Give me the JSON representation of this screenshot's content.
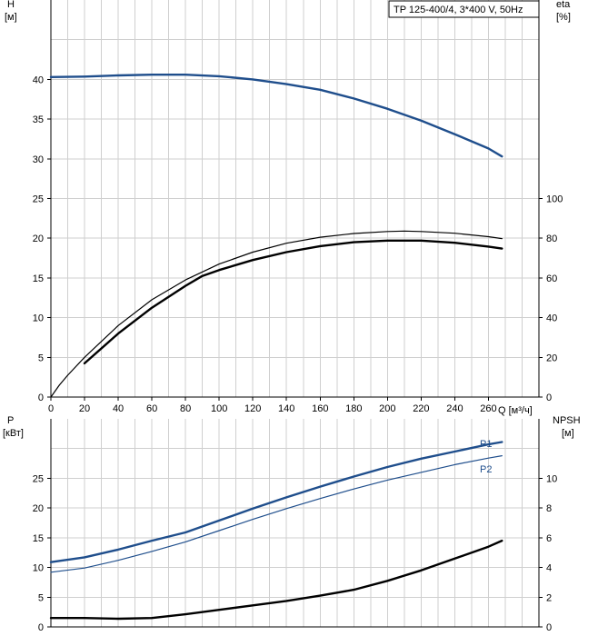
{
  "chart_data": [
    {
      "type": "line",
      "title": "TP 125-400/4, 3*400 V, 50Hz",
      "xlabel": "Q [м³/ч]",
      "xlim": [
        0,
        290
      ],
      "x_ticks": [
        0,
        20,
        40,
        60,
        80,
        100,
        120,
        140,
        160,
        180,
        200,
        220,
        240,
        260
      ],
      "left_axis": {
        "label_line1": "H",
        "label_line2": "[м]",
        "lim": [
          0,
          50
        ],
        "ticks": [
          0,
          5,
          10,
          15,
          20,
          25,
          30,
          35,
          40
        ]
      },
      "right_axis": {
        "label_line1": "eta",
        "label_line2": "[%]",
        "lim": [
          0,
          200
        ],
        "ticks": [
          0,
          20,
          40,
          60,
          80,
          100
        ]
      },
      "grid": true,
      "series": [
        {
          "axis": "left",
          "color": "#1f4e8c",
          "points": [
            [
              0,
              40.3
            ],
            [
              20,
              40.35
            ],
            [
              40,
              40.5
            ],
            [
              60,
              40.6
            ],
            [
              80,
              40.6
            ],
            [
              100,
              40.4
            ],
            [
              120,
              40.0
            ],
            [
              140,
              39.4
            ],
            [
              160,
              38.7
            ],
            [
              180,
              37.6
            ],
            [
              200,
              36.3
            ],
            [
              220,
              34.8
            ],
            [
              240,
              33.1
            ],
            [
              260,
              31.3
            ],
            [
              268,
              30.3
            ]
          ]
        },
        {
          "axis": "right",
          "color": "#000000",
          "points": [
            [
              0,
              0
            ],
            [
              5,
              6
            ],
            [
              10,
              11
            ],
            [
              20,
              20
            ],
            [
              40,
              36
            ],
            [
              60,
              49
            ],
            [
              80,
              59
            ],
            [
              100,
              67
            ],
            [
              120,
              73
            ],
            [
              140,
              77.5
            ],
            [
              160,
              80.5
            ],
            [
              180,
              82.4
            ],
            [
              200,
              83.4
            ],
            [
              210,
              83.6
            ],
            [
              220,
              83.4
            ],
            [
              240,
              82.5
            ],
            [
              260,
              80.8
            ],
            [
              268,
              79.8
            ]
          ]
        },
        {
          "axis": "right",
          "color": "#000000",
          "points": [
            [
              20,
              17
            ],
            [
              40,
              32
            ],
            [
              60,
              45
            ],
            [
              80,
              56
            ],
            [
              90,
              61
            ],
            [
              100,
              64
            ],
            [
              120,
              69
            ],
            [
              140,
              73
            ],
            [
              160,
              76
            ],
            [
              180,
              78
            ],
            [
              200,
              78.8
            ],
            [
              220,
              78.8
            ],
            [
              240,
              77.7
            ],
            [
              260,
              75.8
            ],
            [
              268,
              74.8
            ]
          ]
        }
      ]
    },
    {
      "type": "line",
      "xlim": [
        0,
        290
      ],
      "left_axis": {
        "label_line1": "P",
        "label_line2": "[кВт]",
        "lim": [
          0,
          35
        ],
        "ticks": [
          0,
          5,
          10,
          15,
          20,
          25
        ]
      },
      "right_axis": {
        "label_line1": "NPSH",
        "label_line2": "[м]",
        "lim": [
          0,
          14
        ],
        "ticks": [
          0,
          2,
          4,
          6,
          8,
          10
        ]
      },
      "grid": true,
      "series": [
        {
          "name": "P1",
          "axis": "left",
          "color": "#1f4e8c",
          "points": [
            [
              0,
              10.9
            ],
            [
              20,
              11.7
            ],
            [
              40,
              13.0
            ],
            [
              60,
              14.5
            ],
            [
              80,
              15.9
            ],
            [
              100,
              17.9
            ],
            [
              120,
              19.9
            ],
            [
              140,
              21.8
            ],
            [
              160,
              23.6
            ],
            [
              180,
              25.3
            ],
            [
              200,
              26.9
            ],
            [
              220,
              28.3
            ],
            [
              240,
              29.5
            ],
            [
              260,
              30.7
            ],
            [
              268,
              31.1
            ]
          ]
        },
        {
          "name": "P2",
          "axis": "left",
          "color": "#1f4e8c",
          "points": [
            [
              0,
              9.2
            ],
            [
              20,
              9.9
            ],
            [
              40,
              11.2
            ],
            [
              60,
              12.7
            ],
            [
              80,
              14.3
            ],
            [
              100,
              16.2
            ],
            [
              120,
              18.1
            ],
            [
              140,
              19.9
            ],
            [
              160,
              21.6
            ],
            [
              180,
              23.2
            ],
            [
              200,
              24.7
            ],
            [
              220,
              26.0
            ],
            [
              240,
              27.3
            ],
            [
              260,
              28.4
            ],
            [
              268,
              28.8
            ]
          ]
        },
        {
          "axis": "right",
          "color": "#000000",
          "points": [
            [
              0,
              0.6
            ],
            [
              20,
              0.6
            ],
            [
              40,
              0.55
            ],
            [
              60,
              0.6
            ],
            [
              80,
              0.85
            ],
            [
              100,
              1.15
            ],
            [
              120,
              1.45
            ],
            [
              140,
              1.75
            ],
            [
              160,
              2.1
            ],
            [
              180,
              2.5
            ],
            [
              200,
              3.1
            ],
            [
              220,
              3.8
            ],
            [
              240,
              4.6
            ],
            [
              260,
              5.4
            ],
            [
              268,
              5.8
            ]
          ]
        }
      ]
    }
  ]
}
